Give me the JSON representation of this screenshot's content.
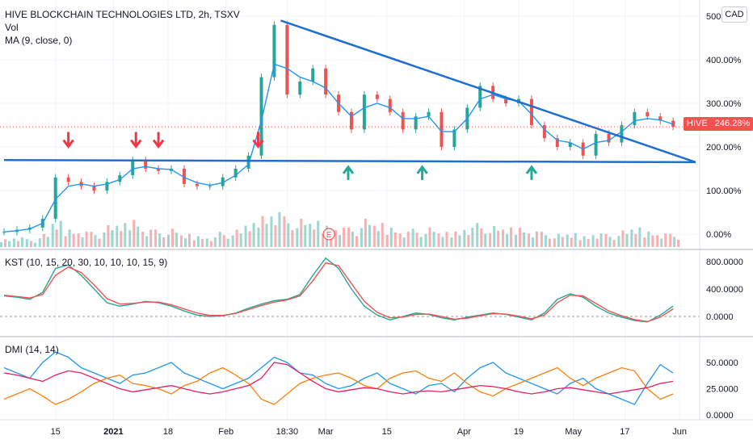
{
  "header": {
    "title": "HIVE BLOCKCHAIN TECHNOLOGIES LTD, 2h, TSXV",
    "vol_label": "Vol",
    "ma_label": "MA (9, close, 0)"
  },
  "currency_badge": "CAD",
  "last_price": {
    "symbol": "HIVE",
    "value": "246.28%",
    "color": "#ef5350"
  },
  "earnings_marker": "E",
  "chart_data": [
    {
      "type": "line",
      "title": "HIVE BLOCKCHAIN TECHNOLOGIES LTD, 2h, TSXV",
      "scale": "percent",
      "y_ticks": [
        "500.00%",
        "400.00%",
        "300.00%",
        "200.00%",
        "100.00%",
        "0.00%"
      ],
      "x_ticks": [
        "15",
        "2021",
        "18",
        "Feb",
        "18:30",
        "Mar",
        "15",
        "Apr",
        "19",
        "May",
        "17",
        "Jun"
      ],
      "x": [
        0,
        4,
        8,
        12,
        16,
        20,
        24,
        28,
        32,
        36,
        40,
        44,
        48,
        52,
        56,
        60,
        64,
        68,
        72,
        76,
        80,
        84,
        88,
        92,
        96,
        100,
        104,
        108,
        112,
        116,
        120,
        124,
        128,
        132,
        136,
        140,
        144,
        148,
        152,
        156,
        160,
        164,
        168,
        172,
        176,
        180,
        184,
        188,
        192,
        196,
        200,
        204,
        208
      ],
      "series": [
        {
          "name": "HIVE",
          "color": "#26a69a",
          "values": [
            5,
            10,
            15,
            35,
            130,
            120,
            110,
            100,
            120,
            135,
            170,
            150,
            145,
            150,
            115,
            110,
            110,
            130,
            150,
            180,
            360,
            480,
            320,
            350,
            380,
            320,
            280,
            240,
            320,
            310,
            280,
            240,
            270,
            280,
            200,
            240,
            290,
            340,
            310,
            300,
            310,
            250,
            220,
            200,
            210,
            180,
            230,
            210,
            250,
            280,
            270,
            260,
            246
          ]
        },
        {
          "name": "MA (9, close, 0)",
          "color": "#2196f3",
          "values": [
            5,
            8,
            12,
            25,
            80,
            110,
            115,
            110,
            115,
            125,
            150,
            155,
            150,
            148,
            130,
            118,
            112,
            118,
            135,
            160,
            260,
            390,
            380,
            360,
            350,
            335,
            300,
            270,
            290,
            300,
            290,
            265,
            265,
            270,
            235,
            235,
            265,
            310,
            320,
            310,
            305,
            275,
            240,
            215,
            210,
            195,
            210,
            215,
            235,
            260,
            265,
            262,
            252
          ]
        }
      ],
      "trendlines": [
        {
          "name": "descending",
          "color": "#1e6fd0",
          "from": [
            86,
            490
          ],
          "to": [
            215,
            165
          ]
        },
        {
          "name": "support",
          "color": "#1e6fd0",
          "from": [
            0,
            170
          ],
          "to": [
            215,
            165
          ]
        }
      ],
      "markers": {
        "down_arrows_x": [
          20,
          41,
          48,
          79
        ],
        "up_arrows_x": [
          107,
          130,
          164
        ],
        "down_color": "#f23645",
        "up_color": "#22ab94"
      },
      "volume": {
        "values": [
          20,
          25,
          18,
          30,
          60,
          45,
          40,
          35,
          50,
          55,
          70,
          45,
          40,
          42,
          30,
          28,
          25,
          35,
          40,
          55,
          80,
          90,
          70,
          65,
          60,
          55,
          50,
          45,
          65,
          55,
          50,
          40,
          42,
          45,
          35,
          40,
          50,
          55,
          48,
          45,
          50,
          40,
          35,
          30,
          32,
          28,
          35,
          30,
          38,
          45,
          40,
          35,
          30
        ]
      }
    },
    {
      "type": "line",
      "title": "KST (10, 15, 20, 30, 10, 10, 10, 15, 9)",
      "y_ticks": [
        "800.0000",
        "400.0000",
        "0.0000"
      ],
      "series": [
        {
          "name": "KST",
          "color": "#26a69a",
          "values": [
            300,
            280,
            250,
            350,
            700,
            750,
            600,
            400,
            200,
            150,
            180,
            220,
            200,
            150,
            80,
            20,
            0,
            10,
            50,
            120,
            180,
            230,
            250,
            320,
            600,
            850,
            700,
            400,
            150,
            20,
            -50,
            0,
            50,
            30,
            -20,
            -50,
            -10,
            20,
            50,
            30,
            -10,
            -50,
            50,
            250,
            330,
            280,
            150,
            50,
            -10,
            -60,
            -80,
            20,
            150,
            220
          ]
        },
        {
          "name": "Signal",
          "color": "#ef5350",
          "values": [
            310,
            290,
            270,
            320,
            600,
            720,
            640,
            460,
            260,
            180,
            190,
            210,
            210,
            170,
            110,
            50,
            15,
            15,
            45,
            100,
            160,
            210,
            240,
            300,
            520,
            780,
            740,
            480,
            220,
            60,
            -20,
            -10,
            30,
            35,
            0,
            -40,
            -25,
            10,
            40,
            35,
            5,
            -35,
            20,
            200,
            310,
            300,
            190,
            80,
            10,
            -45,
            -75,
            -10,
            110,
            200
          ]
        }
      ]
    },
    {
      "type": "line",
      "title": "DMI (14, 14)",
      "y_ticks": [
        "50.0000",
        "25.0000",
        "0.0000"
      ],
      "series": [
        {
          "name": "DI+",
          "color": "#2196f3",
          "values": [
            45,
            40,
            35,
            50,
            60,
            55,
            45,
            40,
            35,
            30,
            38,
            40,
            45,
            50,
            40,
            35,
            30,
            25,
            30,
            35,
            45,
            55,
            50,
            40,
            38,
            30,
            25,
            28,
            35,
            40,
            30,
            25,
            20,
            28,
            30,
            22,
            35,
            45,
            50,
            40,
            35,
            30,
            25,
            20,
            30,
            35,
            25,
            20,
            15,
            10,
            30,
            48,
            40
          ]
        },
        {
          "name": "DI-",
          "color": "#ff7f0e",
          "values": [
            15,
            20,
            25,
            18,
            10,
            15,
            22,
            30,
            35,
            38,
            30,
            28,
            25,
            20,
            28,
            32,
            40,
            45,
            38,
            30,
            15,
            10,
            20,
            30,
            35,
            38,
            40,
            35,
            28,
            25,
            35,
            40,
            42,
            35,
            32,
            40,
            30,
            22,
            18,
            25,
            30,
            35,
            40,
            45,
            35,
            28,
            35,
            40,
            45,
            42,
            25,
            15,
            20
          ]
        },
        {
          "name": "ADX",
          "color": "#e91e63",
          "values": [
            40,
            38,
            35,
            32,
            38,
            42,
            40,
            35,
            30,
            25,
            22,
            24,
            26,
            28,
            25,
            22,
            20,
            22,
            25,
            28,
            35,
            50,
            48,
            40,
            32,
            25,
            22,
            24,
            26,
            25,
            22,
            20,
            22,
            23,
            22,
            24,
            26,
            28,
            27,
            25,
            22,
            20,
            22,
            25,
            26,
            24,
            22,
            20,
            22,
            24,
            26,
            30,
            32
          ]
        }
      ]
    }
  ]
}
